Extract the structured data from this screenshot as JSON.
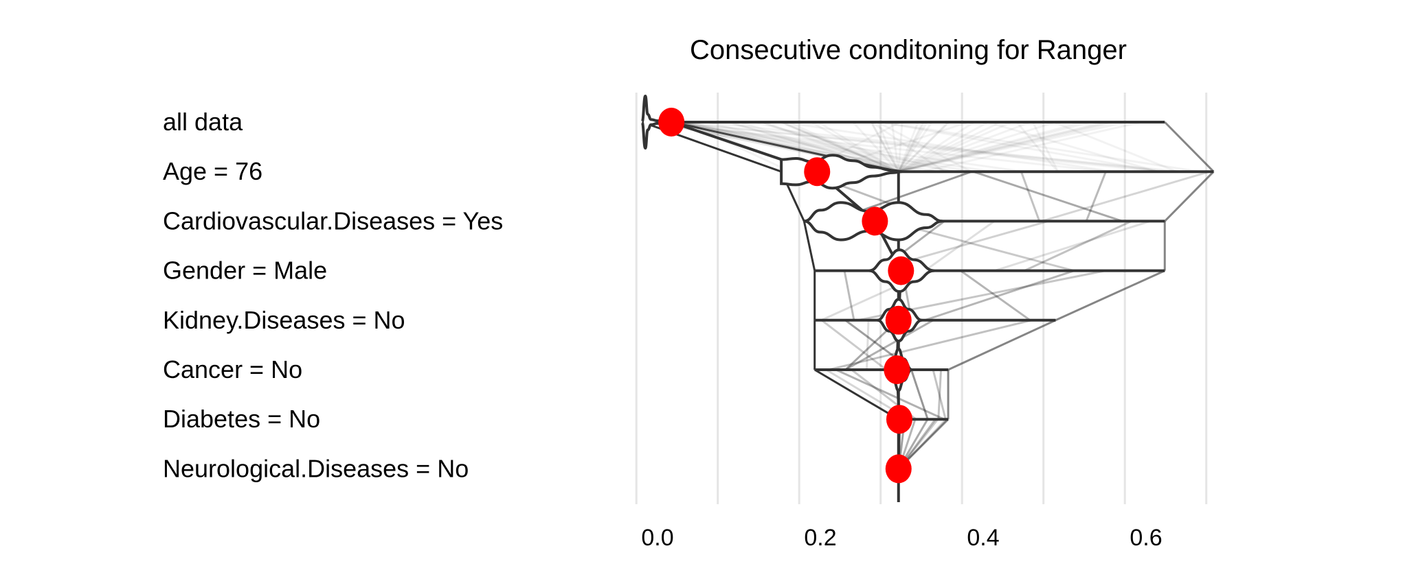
{
  "chart_data": {
    "type": "break-down-distribution",
    "title": "Consecutive conditoning for Ranger",
    "xlabel": "",
    "ylabel": "",
    "xlim": [
      -0.03,
      0.7
    ],
    "x_ticks": [
      {
        "value": 0.0,
        "label": "0.0"
      },
      {
        "value": 0.2,
        "label": "0.2"
      },
      {
        "value": 0.4,
        "label": "0.4"
      },
      {
        "value": 0.6,
        "label": "0.6"
      }
    ],
    "grid": true,
    "point_color": "#ff0000",
    "line_color": "#333333",
    "rows": [
      {
        "label": "all data",
        "prediction": 0.017,
        "min": -0.019,
        "max": 0.623,
        "violin": [
          [
            -0.019,
            0.0
          ],
          [
            -0.015,
            1.0
          ],
          [
            -0.012,
            0.3
          ],
          [
            -0.008,
            0.1
          ],
          [
            0.0,
            0.05
          ]
        ]
      },
      {
        "label": "Age = 76",
        "prediction": 0.196,
        "min": 0.152,
        "max": 0.683,
        "violin": [
          [
            0.152,
            0.55
          ],
          [
            0.17,
            0.6
          ],
          [
            0.19,
            0.45
          ],
          [
            0.215,
            0.75
          ],
          [
            0.24,
            0.5
          ],
          [
            0.265,
            0.2
          ],
          [
            0.29,
            0.05
          ],
          [
            0.3,
            0.0
          ]
        ]
      },
      {
        "label": "Cardiovascular.Diseases = Yes",
        "prediction": 0.267,
        "min": 0.18,
        "max": 0.623,
        "violin": [
          [
            0.18,
            0.0
          ],
          [
            0.2,
            0.5
          ],
          [
            0.225,
            0.85
          ],
          [
            0.26,
            0.45
          ],
          [
            0.296,
            0.85
          ],
          [
            0.33,
            0.3
          ],
          [
            0.35,
            0.0
          ]
        ]
      },
      {
        "label": "Gender = Male",
        "prediction": 0.299,
        "min": 0.193,
        "max": 0.623,
        "violin": [
          [
            0.26,
            0.0
          ],
          [
            0.28,
            0.5
          ],
          [
            0.297,
            0.95
          ],
          [
            0.315,
            0.5
          ],
          [
            0.34,
            0.0
          ]
        ]
      },
      {
        "label": "Kidney.Diseases = No",
        "prediction": 0.296,
        "min": 0.193,
        "max": 0.489,
        "violin": [
          [
            0.27,
            0.0
          ],
          [
            0.285,
            0.5
          ],
          [
            0.296,
            0.95
          ],
          [
            0.308,
            0.5
          ],
          [
            0.325,
            0.0
          ]
        ]
      },
      {
        "label": "Cancer = No",
        "prediction": 0.294,
        "min": 0.193,
        "max": 0.357,
        "violin": [
          [
            0.282,
            0.0
          ],
          [
            0.29,
            0.5
          ],
          [
            0.296,
            0.95
          ],
          [
            0.302,
            0.5
          ],
          [
            0.312,
            0.0
          ]
        ]
      },
      {
        "label": "Diabetes = No",
        "prediction": 0.297,
        "min": 0.296,
        "max": 0.357,
        "violin": [
          [
            0.29,
            0.0
          ],
          [
            0.296,
            0.3
          ],
          [
            0.302,
            0.0
          ]
        ]
      },
      {
        "label": "Neurological.Diseases = No",
        "prediction": 0.296,
        "min": 0.296,
        "max": 0.296,
        "violin": []
      }
    ]
  }
}
